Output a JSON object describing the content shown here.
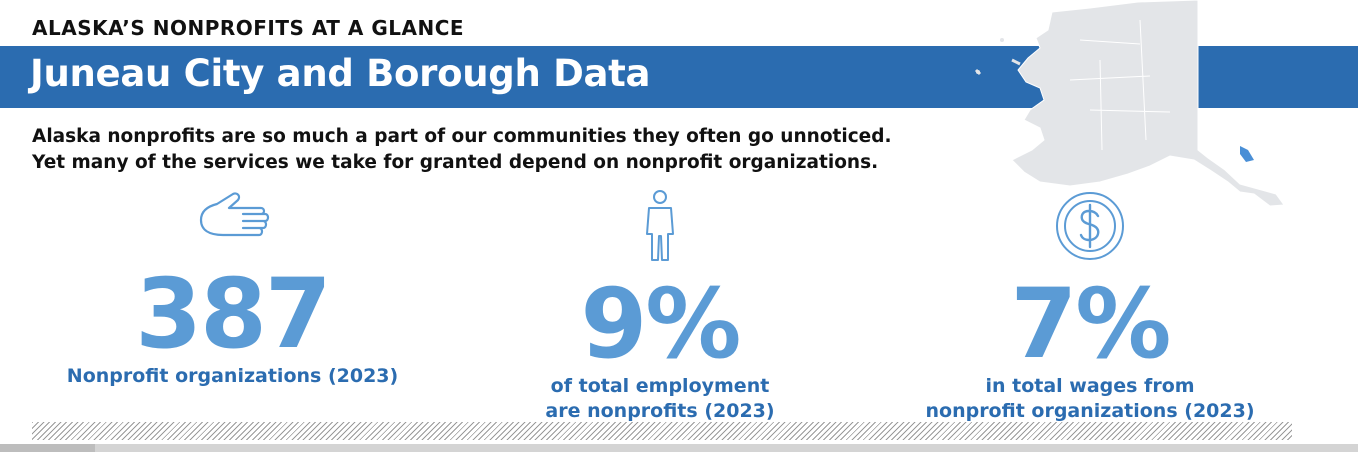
{
  "header": {
    "kicker": "ALASKA’S NONPROFITS AT A GLANCE",
    "title": "Juneau City and Borough Data"
  },
  "intro": {
    "line1": "Alaska nonprofits are so much a part of our communities they often go unnoticed.",
    "line2": "Yet many of the services we take for granted depend on nonprofit organizations."
  },
  "stats": [
    {
      "icon": "hand-icon",
      "value": "387",
      "label_line1": "Nonprofit organizations (2023)",
      "label_line2": ""
    },
    {
      "icon": "person-icon",
      "value": "9%",
      "label_line1": "of total employment",
      "label_line2": "are nonprofits (2023)"
    },
    {
      "icon": "dollar-coin-icon",
      "value": "7%",
      "label_line1": "in total wages from",
      "label_line2": "nonprofit organizations (2023)"
    }
  ],
  "colors": {
    "banner": "#2b6cb0",
    "stat_number": "#5b9bd5",
    "stat_label": "#2b6cb0",
    "map_fill": "#e3e5e8",
    "map_highlight": "#4a8fd6"
  }
}
